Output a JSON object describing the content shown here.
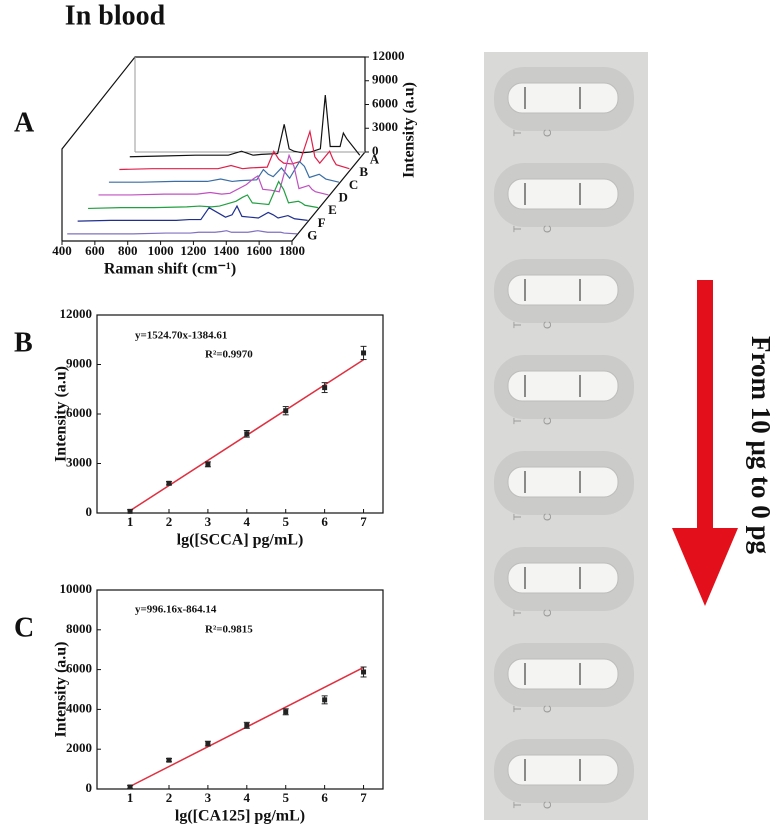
{
  "title": "In blood",
  "chart_data": [
    {
      "type": "waterfall",
      "panel": "A",
      "x_label": "Raman shift (cm⁻¹)",
      "y_label": "Intensity (a.u)",
      "x": [
        400,
        600,
        800,
        1000,
        1080,
        1150,
        1200,
        1300,
        1340,
        1370,
        1400,
        1450,
        1500,
        1560,
        1590,
        1620,
        1680,
        1700,
        1720,
        1800
      ],
      "xlim": [
        400,
        1800
      ],
      "xticks": [
        400,
        600,
        800,
        1000,
        1200,
        1400,
        1600,
        1800
      ],
      "ylim": [
        0,
        12000
      ],
      "yticks": [
        0,
        3000,
        6000,
        9000,
        12000
      ],
      "series": [
        {
          "name": "A",
          "color": "#111111",
          "values": [
            200,
            300,
            400,
            400,
            900,
            400,
            500,
            600,
            4300,
            1200,
            900,
            700,
            800,
            1200,
            8000,
            1500,
            1500,
            3200,
            2500,
            400
          ]
        },
        {
          "name": "B",
          "color": "#e0204a",
          "values": [
            200,
            300,
            300,
            300,
            700,
            300,
            400,
            500,
            2500,
            1500,
            1000,
            900,
            1200,
            5000,
            1800,
            1000,
            2500,
            1500,
            800,
            300
          ]
        },
        {
          "name": "C",
          "color": "#3a6ea5",
          "values": [
            200,
            200,
            300,
            300,
            600,
            300,
            400,
            500,
            1800,
            1200,
            900,
            2000,
            700,
            2800,
            2200,
            800,
            1200,
            900,
            600,
            200
          ]
        },
        {
          "name": "D",
          "color": "#c050c0",
          "values": [
            200,
            200,
            300,
            300,
            500,
            300,
            400,
            1500,
            2200,
            2600,
            900,
            800,
            600,
            5200,
            3800,
            1000,
            1400,
            900,
            600,
            200
          ]
        },
        {
          "name": "E",
          "color": "#20a040",
          "values": [
            100,
            200,
            200,
            300,
            400,
            300,
            400,
            1000,
            1500,
            1800,
            800,
            700,
            600,
            3500,
            2500,
            800,
            1000,
            800,
            500,
            200
          ]
        },
        {
          "name": "F",
          "color": "#1f2f8f",
          "values": [
            100,
            200,
            200,
            200,
            300,
            300,
            1800,
            600,
            900,
            2000,
            700,
            600,
            500,
            1200,
            900,
            500,
            800,
            600,
            400,
            200
          ]
        },
        {
          "name": "G",
          "color": "#8070c0",
          "values": [
            100,
            100,
            100,
            200,
            200,
            200,
            300,
            300,
            400,
            500,
            300,
            300,
            300,
            500,
            400,
            300,
            300,
            300,
            200,
            100
          ]
        }
      ]
    },
    {
      "type": "scatter",
      "panel": "B",
      "x_label": "lg([SCCA] pg/mL)",
      "y_label": "Intensity (a.u)",
      "annotations": [
        "y=1524.70x-1384.61",
        "R²=0.9970"
      ],
      "x": [
        1,
        2,
        3,
        4,
        5,
        6,
        7
      ],
      "values": [
        100,
        1800,
        2950,
        4800,
        6200,
        7600,
        9700
      ],
      "errors": [
        100,
        100,
        150,
        200,
        250,
        300,
        400
      ],
      "color": "#222222",
      "fit": {
        "x": [
          1,
          7
        ],
        "y": [
          140.09,
          9288.29
        ],
        "color": "#e03040"
      },
      "xlim": [
        0.15,
        7.5
      ],
      "xticks": [
        1,
        2,
        3,
        4,
        5,
        6,
        7
      ],
      "ylim": [
        0,
        12000
      ],
      "yticks": [
        0,
        3000,
        6000,
        9000,
        12000
      ]
    },
    {
      "type": "scatter",
      "panel": "C",
      "x_label": "lg([CA125] pg/mL)",
      "y_label": "Intensity (a.u)",
      "annotations": [
        "y=996.16x-864.14",
        "R²=0.9815"
      ],
      "x": [
        1,
        2,
        3,
        4,
        5,
        6,
        7
      ],
      "values": [
        100,
        1450,
        2280,
        3200,
        3880,
        4480,
        5880
      ],
      "errors": [
        80,
        80,
        120,
        150,
        150,
        200,
        250
      ],
      "color": "#222222",
      "fit": {
        "x": [
          1,
          7
        ],
        "y": [
          132.02,
          6108.98
        ],
        "color": "#e03040"
      },
      "xlim": [
        0.15,
        7.5
      ],
      "xticks": [
        1,
        2,
        3,
        4,
        5,
        6,
        7
      ],
      "ylim": [
        0,
        10000
      ],
      "yticks": [
        0,
        2000,
        4000,
        6000,
        8000,
        10000
      ]
    }
  ],
  "photo": {
    "strip_labels": [
      "T",
      "C"
    ],
    "arrow_text": "From 10 μg to 0 pg"
  }
}
